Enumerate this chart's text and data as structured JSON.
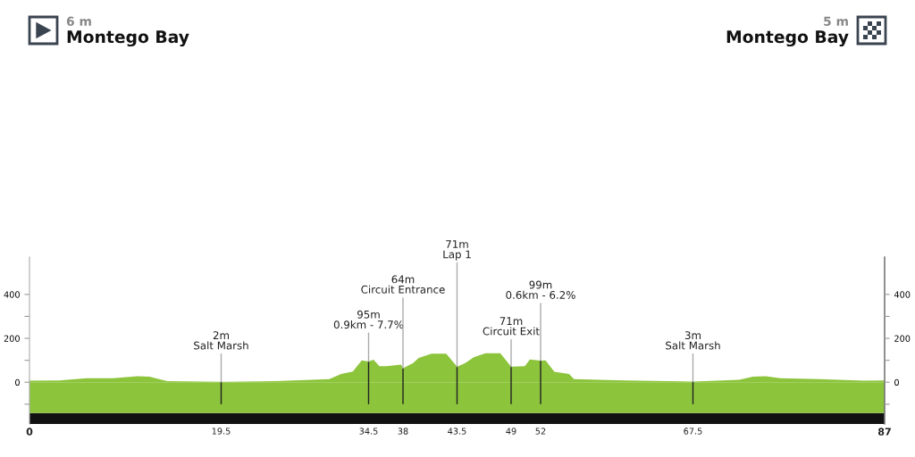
{
  "chart_data": {
    "type": "area",
    "x": [
      0,
      3,
      5.8,
      8.5,
      11,
      12.2,
      14,
      19.5,
      25,
      30.5,
      31.7,
      32.9,
      33.8,
      34.5,
      35,
      35.6,
      36.3,
      37.8,
      38,
      39,
      39.6,
      40.9,
      42.4,
      43.5,
      44.3,
      45.2,
      46.4,
      47.9,
      49,
      50.4,
      50.9,
      52,
      52.5,
      53.4,
      54.9,
      55.4,
      60.6,
      67.5,
      72.2,
      73.6,
      74.9,
      76.4,
      80.4,
      84.9,
      87
    ],
    "series": [
      {
        "color": "#8cc43c",
        "values": [
          7,
          8,
          18,
          18,
          27,
          25,
          5,
          2,
          5,
          14,
          38,
          49,
          100,
          95,
          103,
          73,
          73,
          80,
          64,
          86,
          111,
          130,
          130,
          71,
          86,
          114,
          132,
          132,
          71,
          73,
          104,
          99,
          100,
          48,
          38,
          14,
          8,
          3,
          11,
          25,
          27,
          18,
          14,
          7,
          8
        ]
      }
    ],
    "xlim": [
      0,
      87
    ],
    "xticks": [
      0,
      19.5,
      34.5,
      38,
      43.5,
      49,
      52,
      67.5,
      87
    ],
    "ylim": [
      -190,
      570
    ],
    "yticks": [
      {
        "value": -100,
        "label": null
      },
      0,
      {
        "value": 100,
        "label": null
      },
      200,
      {
        "value": 300,
        "label": null
      },
      400
    ],
    "y2lim": [
      -190,
      570
    ],
    "y2ticks": [
      {
        "value": -100,
        "label": null
      },
      0,
      {
        "value": 100,
        "label": null
      },
      200,
      {
        "value": 300,
        "label": null
      },
      400
    ],
    "bands": [
      {
        "axis": "y",
        "from": -190,
        "to": -140,
        "color": "#111111"
      },
      {
        "axis": "y",
        "from": -140,
        "to": 0,
        "color": "#8cc43c"
      }
    ],
    "annotations": [
      "6 m",
      "Montego Bay",
      "5 m",
      "Montego Bay",
      {
        "text": "2m\nSalt Marsh",
        "x": 19.5,
        "y": 2
      },
      {
        "text": "95m\n0.9km - 7.7%",
        "x": 34.5,
        "y": 95
      },
      {
        "text": "64m\nCircuit Entrance",
        "x": 38,
        "y": 64
      },
      {
        "text": "71m\nLap 1",
        "x": 43.5,
        "y": 71
      },
      {
        "text": "71m\nCircuit Exit",
        "x": 49,
        "y": 71
      },
      {
        "text": "99m\n0.6km - 6.2%",
        "x": 52,
        "y": 99
      },
      {
        "text": "3m\nSalt Marsh",
        "x": 67.5,
        "y": 3
      }
    ],
    "grid": false,
    "legend": false
  }
}
